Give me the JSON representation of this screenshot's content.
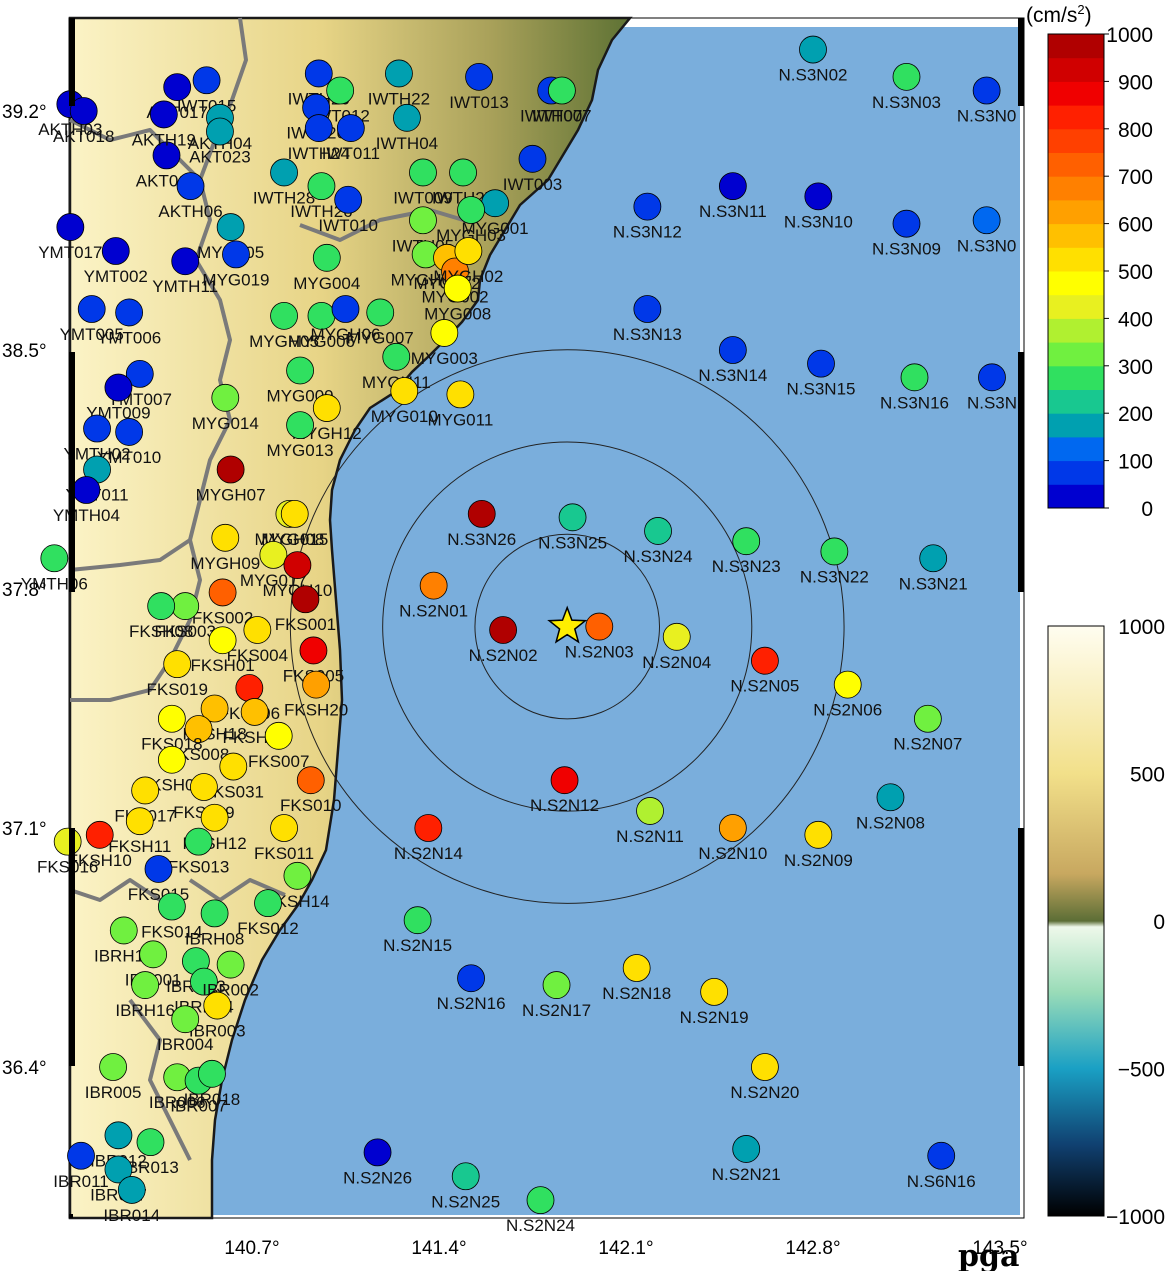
{
  "title_corner": "pga",
  "unit": "(cm/s",
  "unit_sup": "2",
  "unit_close": ")",
  "lon_ticks": [
    "140.7°",
    "141.4°",
    "142.1°",
    "142.8°",
    "143.5°"
  ],
  "lat_ticks": [
    "39.2°",
    "38.5°",
    "37.8°",
    "37.1°",
    "36.4°"
  ],
  "pga_colorbar": {
    "labels": [
      "1000",
      "900",
      "800",
      "700",
      "600",
      "500",
      "400",
      "300",
      "200",
      "100",
      "0"
    ],
    "colors": [
      "#0000d0",
      "#0038e8",
      "#0068f0",
      "#00a0b0",
      "#18c890",
      "#30e060",
      "#70f040",
      "#b0f030",
      "#e8f020",
      "#ffff00",
      "#ffe000",
      "#ffc000",
      "#ffa000",
      "#ff8000",
      "#ff6000",
      "#ff4000",
      "#ff2000",
      "#f00000",
      "#d00000",
      "#b00000"
    ]
  },
  "topo_colorbar": {
    "labels": [
      "1000",
      "500",
      "0",
      "−500",
      "−1000"
    ]
  },
  "colors": {
    "ocean": "#7aaedc",
    "land_low": "#6a7a3a",
    "land_high": "#f5ecb0",
    "star": "#ffee00",
    "epicenter_ring": "#222222"
  },
  "epicenter": {
    "lon": 141.88,
    "lat": 37.69
  },
  "rings_km": [
    30,
    60,
    90
  ],
  "stations": [
    {
      "name": "N.S3N02",
      "lon": 142.8,
      "lat": 39.38,
      "pga": 150
    },
    {
      "name": "N.S3N03",
      "lon": 143.15,
      "lat": 39.3,
      "pga": 290
    },
    {
      "name": "N.S3N0",
      "lon": 143.45,
      "lat": 39.26,
      "pga": 60
    },
    {
      "name": "N.S3N11",
      "lon": 142.5,
      "lat": 38.98,
      "pga": 40
    },
    {
      "name": "N.S3N10",
      "lon": 142.82,
      "lat": 38.95,
      "pga": 30
    },
    {
      "name": "N.S3N12",
      "lon": 142.18,
      "lat": 38.92,
      "pga": 60
    },
    {
      "name": "N.S3N09",
      "lon": 143.15,
      "lat": 38.87,
      "pga": 60
    },
    {
      "name": "N.S3N0",
      "lon": 143.45,
      "lat": 38.88,
      "pga": 140
    },
    {
      "name": "N.S3N13",
      "lon": 142.18,
      "lat": 38.62,
      "pga": 60
    },
    {
      "name": "N.S3N14",
      "lon": 142.5,
      "lat": 38.5,
      "pga": 50
    },
    {
      "name": "N.S3N15",
      "lon": 142.83,
      "lat": 38.46,
      "pga": 60
    },
    {
      "name": "N.S3N16",
      "lon": 143.18,
      "lat": 38.42,
      "pga": 260
    },
    {
      "name": "N.S3N",
      "lon": 143.47,
      "lat": 38.42,
      "pga": 60
    },
    {
      "name": "MYG011",
      "lon": 141.48,
      "lat": 38.37,
      "pga": 500
    },
    {
      "name": "N.S3N26",
      "lon": 141.56,
      "lat": 38.02,
      "pga": 950
    },
    {
      "name": "N.S3N25",
      "lon": 141.9,
      "lat": 38.01,
      "pga": 230
    },
    {
      "name": "N.S3N24",
      "lon": 142.22,
      "lat": 37.97,
      "pga": 230
    },
    {
      "name": "N.S3N23",
      "lon": 142.55,
      "lat": 37.94,
      "pga": 260
    },
    {
      "name": "N.S3N22",
      "lon": 142.88,
      "lat": 37.91,
      "pga": 280
    },
    {
      "name": "N.S3N21",
      "lon": 143.25,
      "lat": 37.89,
      "pga": 150
    },
    {
      "name": "N.S2N01",
      "lon": 141.38,
      "lat": 37.81,
      "pga": 680
    },
    {
      "name": "N.S2N02",
      "lon": 141.64,
      "lat": 37.68,
      "pga": 990
    },
    {
      "name": "N.S2N03",
      "lon": 142.0,
      "lat": 37.69,
      "pga": 720
    },
    {
      "name": "N.S2N04",
      "lon": 142.29,
      "lat": 37.66,
      "pga": 420
    },
    {
      "name": "N.S2N05",
      "lon": 142.62,
      "lat": 37.59,
      "pga": 840
    },
    {
      "name": "N.S2N06",
      "lon": 142.93,
      "lat": 37.52,
      "pga": 480
    },
    {
      "name": "N.S2N07",
      "lon": 143.23,
      "lat": 37.42,
      "pga": 300
    },
    {
      "name": "N.S2N12",
      "lon": 141.87,
      "lat": 37.24,
      "pga": 870
    },
    {
      "name": "N.S2N11",
      "lon": 142.19,
      "lat": 37.15,
      "pga": 390
    },
    {
      "name": "N.S2N08",
      "lon": 143.09,
      "lat": 37.19,
      "pga": 150
    },
    {
      "name": "N.S2N14",
      "lon": 141.36,
      "lat": 37.1,
      "pga": 820
    },
    {
      "name": "N.S2N10",
      "lon": 142.5,
      "lat": 37.1,
      "pga": 600
    },
    {
      "name": "N.S2N09",
      "lon": 142.82,
      "lat": 37.08,
      "pga": 500
    },
    {
      "name": "N.S2N15",
      "lon": 141.32,
      "lat": 36.83,
      "pga": 250
    },
    {
      "name": "N.S2N16",
      "lon": 141.52,
      "lat": 36.66,
      "pga": 50
    },
    {
      "name": "N.S2N17",
      "lon": 141.84,
      "lat": 36.64,
      "pga": 330
    },
    {
      "name": "N.S2N18",
      "lon": 142.14,
      "lat": 36.69,
      "pga": 530
    },
    {
      "name": "N.S2N19",
      "lon": 142.43,
      "lat": 36.62,
      "pga": 520
    },
    {
      "name": "N.S2N20",
      "lon": 142.62,
      "lat": 36.4,
      "pga": 500
    },
    {
      "name": "N.S2N21",
      "lon": 142.55,
      "lat": 36.16,
      "pga": 150
    },
    {
      "name": "N.S6N16",
      "lon": 143.28,
      "lat": 36.14,
      "pga": 60
    },
    {
      "name": "N.S2N26",
      "lon": 141.17,
      "lat": 36.15,
      "pga": 40
    },
    {
      "name": "N.S2N25",
      "lon": 141.5,
      "lat": 36.08,
      "pga": 200
    },
    {
      "name": "N.S2N24",
      "lon": 141.78,
      "lat": 36.01,
      "pga": 280
    },
    {
      "name": "IWT013",
      "lon": 141.55,
      "lat": 39.3,
      "pga": 60
    },
    {
      "name": "IWTH22",
      "lon": 141.25,
      "lat": 39.31,
      "pga": 150
    },
    {
      "name": "IWTH20",
      "lon": 140.95,
      "lat": 39.31,
      "pga": 60
    },
    {
      "name": "IWT012",
      "lon": 141.03,
      "lat": 39.26,
      "pga": 280
    },
    {
      "name": "IWT026",
      "lon": 140.94,
      "lat": 39.21,
      "pga": 60
    },
    {
      "name": "IWT015",
      "lon": 140.53,
      "lat": 39.29,
      "pga": 50
    },
    {
      "name": "AKT017",
      "lon": 140.42,
      "lat": 39.27,
      "pga": 40
    },
    {
      "name": "IWTH07",
      "lon": 141.82,
      "lat": 39.26,
      "pga": 60
    },
    {
      "name": "IWT007",
      "lon": 141.86,
      "lat": 39.26,
      "pga": 280
    },
    {
      "name": "AKTH04",
      "lon": 140.58,
      "lat": 39.18,
      "pga": 150
    },
    {
      "name": "IWTH24",
      "lon": 140.95,
      "lat": 39.15,
      "pga": 50
    },
    {
      "name": "IWTH04",
      "lon": 141.28,
      "lat": 39.18,
      "pga": 150
    },
    {
      "name": "IWT011",
      "lon": 141.07,
      "lat": 39.15,
      "pga": 60
    },
    {
      "name": "IWT003",
      "lon": 141.75,
      "lat": 39.06,
      "pga": 60
    },
    {
      "name": "IWTH27",
      "lon": 141.49,
      "lat": 39.02,
      "pga": 290
    },
    {
      "name": "IWT009",
      "lon": 141.34,
      "lat": 39.02,
      "pga": 290
    },
    {
      "name": "IWTH28",
      "lon": 140.82,
      "lat": 39.02,
      "pga": 150
    },
    {
      "name": "IWTH26",
      "lon": 140.96,
      "lat": 38.98,
      "pga": 260
    },
    {
      "name": "IWT010",
      "lon": 141.06,
      "lat": 38.94,
      "pga": 60
    },
    {
      "name": "MYG001",
      "lon": 141.61,
      "lat": 38.93,
      "pga": 150
    },
    {
      "name": "IWTH05",
      "lon": 141.34,
      "lat": 38.88,
      "pga": 300
    },
    {
      "name": "MYGH03",
      "lon": 141.52,
      "lat": 38.91,
      "pga": 260
    },
    {
      "name": "AKT019",
      "lon": 140.38,
      "lat": 39.07,
      "pga": 40
    },
    {
      "name": "AKTH06",
      "lon": 140.47,
      "lat": 38.98,
      "pga": 60
    },
    {
      "name": "MYG005",
      "lon": 140.62,
      "lat": 38.86,
      "pga": 150
    },
    {
      "name": "MYG019",
      "lon": 140.64,
      "lat": 38.78,
      "pga": 60
    },
    {
      "name": "MYG004",
      "lon": 140.98,
      "lat": 38.77,
      "pga": 280
    },
    {
      "name": "MYGH04",
      "lon": 141.35,
      "lat": 38.78,
      "pga": 300
    },
    {
      "name": "MYG012",
      "lon": 141.43,
      "lat": 38.77,
      "pga": 560
    },
    {
      "name": "MYG002",
      "lon": 141.46,
      "lat": 38.73,
      "pga": 680
    },
    {
      "name": "MYGH02",
      "lon": 141.51,
      "lat": 38.79,
      "pga": 500
    },
    {
      "name": "MYG008",
      "lon": 141.47,
      "lat": 38.68,
      "pga": 450
    },
    {
      "name": "MYGH05",
      "lon": 140.82,
      "lat": 38.6,
      "pga": 280
    },
    {
      "name": "MYG006",
      "lon": 140.96,
      "lat": 38.6,
      "pga": 260
    },
    {
      "name": "MYGH06",
      "lon": 141.05,
      "lat": 38.62,
      "pga": 60
    },
    {
      "name": "MYG007",
      "lon": 141.18,
      "lat": 38.61,
      "pga": 260
    },
    {
      "name": "MYG003",
      "lon": 141.42,
      "lat": 38.55,
      "pga": 450
    },
    {
      "name": "MYGH11",
      "lon": 141.24,
      "lat": 38.48,
      "pga": 280
    },
    {
      "name": "MYG010",
      "lon": 141.27,
      "lat": 38.38,
      "pga": 500
    },
    {
      "name": "MYG009",
      "lon": 140.88,
      "lat": 38.44,
      "pga": 280
    },
    {
      "name": "MYG014",
      "lon": 140.6,
      "lat": 38.36,
      "pga": 300
    },
    {
      "name": "MYGH12",
      "lon": 140.98,
      "lat": 38.33,
      "pga": 500
    },
    {
      "name": "MYG013",
      "lon": 140.88,
      "lat": 38.28,
      "pga": 280
    },
    {
      "name": "MYGH07",
      "lon": 140.62,
      "lat": 38.15,
      "pga": 950
    },
    {
      "name": "MYGH08",
      "lon": 140.84,
      "lat": 38.02,
      "pga": 420
    },
    {
      "name": "MYG015",
      "lon": 140.86,
      "lat": 38.02,
      "pga": 500
    },
    {
      "name": "MYGH09",
      "lon": 140.6,
      "lat": 37.95,
      "pga": 520
    },
    {
      "name": "MYG017",
      "lon": 140.78,
      "lat": 37.9,
      "pga": 420
    },
    {
      "name": "MYGH10",
      "lon": 140.87,
      "lat": 37.87,
      "pga": 930
    },
    {
      "name": "FKS002",
      "lon": 140.59,
      "lat": 37.79,
      "pga": 720
    },
    {
      "name": "FKS001",
      "lon": 140.9,
      "lat": 37.77,
      "pga": 950
    },
    {
      "name": "FKS003",
      "lon": 140.45,
      "lat": 37.75,
      "pga": 300
    },
    {
      "name": "FKSH08",
      "lon": 140.36,
      "lat": 37.75,
      "pga": 260
    },
    {
      "name": "FKS004",
      "lon": 140.72,
      "lat": 37.68,
      "pga": 500
    },
    {
      "name": "FKSH01",
      "lon": 140.59,
      "lat": 37.65,
      "pga": 450
    },
    {
      "name": "FKS005",
      "lon": 140.93,
      "lat": 37.62,
      "pga": 880
    },
    {
      "name": "FKS019",
      "lon": 140.42,
      "lat": 37.58,
      "pga": 500
    },
    {
      "name": "FKS006",
      "lon": 140.69,
      "lat": 37.51,
      "pga": 800
    },
    {
      "name": "FKSH20",
      "lon": 140.94,
      "lat": 37.52,
      "pga": 600
    },
    {
      "name": "FKSH19",
      "lon": 140.71,
      "lat": 37.44,
      "pga": 560
    },
    {
      "name": "FKSH18",
      "lon": 140.56,
      "lat": 37.45,
      "pga": 580
    },
    {
      "name": "FKS008",
      "lon": 140.5,
      "lat": 37.39,
      "pga": 560
    },
    {
      "name": "FKS018",
      "lon": 140.4,
      "lat": 37.42,
      "pga": 480
    },
    {
      "name": "FKS007",
      "lon": 140.8,
      "lat": 37.37,
      "pga": 450
    },
    {
      "name": "FKSH09",
      "lon": 140.4,
      "lat": 37.3,
      "pga": 480
    },
    {
      "name": "FKS031",
      "lon": 140.63,
      "lat": 37.28,
      "pga": 500
    },
    {
      "name": "FKS010",
      "lon": 140.92,
      "lat": 37.24,
      "pga": 720
    },
    {
      "name": "FKS017",
      "lon": 140.3,
      "lat": 37.21,
      "pga": 500
    },
    {
      "name": "FKS009",
      "lon": 140.52,
      "lat": 37.22,
      "pga": 530
    },
    {
      "name": "FKSH12",
      "lon": 140.56,
      "lat": 37.13,
      "pga": 500
    },
    {
      "name": "FKSH11",
      "lon": 140.28,
      "lat": 37.12,
      "pga": 500
    },
    {
      "name": "FKS013",
      "lon": 140.5,
      "lat": 37.06,
      "pga": 250
    },
    {
      "name": "FKS011",
      "lon": 140.82,
      "lat": 37.1,
      "pga": 500
    },
    {
      "name": "FKSH10",
      "lon": 140.13,
      "lat": 37.08,
      "pga": 820
    },
    {
      "name": "FKS016",
      "lon": 140.01,
      "lat": 37.06,
      "pga": 400
    },
    {
      "name": "FKS015",
      "lon": 140.35,
      "lat": 36.98,
      "pga": 60
    },
    {
      "name": "FKSH14",
      "lon": 140.87,
      "lat": 36.96,
      "pga": 300
    },
    {
      "name": "FKS012",
      "lon": 140.76,
      "lat": 36.88,
      "pga": 250
    },
    {
      "name": "FKS014",
      "lon": 140.4,
      "lat": 36.87,
      "pga": 280
    },
    {
      "name": "IBRH08",
      "lon": 140.56,
      "lat": 36.85,
      "pga": 280
    },
    {
      "name": "IBRH12",
      "lon": 140.22,
      "lat": 36.8,
      "pga": 300
    },
    {
      "name": "IBRH13",
      "lon": 140.49,
      "lat": 36.71,
      "pga": 280
    },
    {
      "name": "IBRH14",
      "lon": 140.52,
      "lat": 36.65,
      "pga": 250
    },
    {
      "name": "IBR002",
      "lon": 140.62,
      "lat": 36.7,
      "pga": 300
    },
    {
      "name": "IBR001",
      "lon": 140.33,
      "lat": 36.73,
      "pga": 300
    },
    {
      "name": "IBRH16",
      "lon": 140.3,
      "lat": 36.64,
      "pga": 300
    },
    {
      "name": "IBR003",
      "lon": 140.57,
      "lat": 36.58,
      "pga": 500
    },
    {
      "name": "IBR004",
      "lon": 140.45,
      "lat": 36.54,
      "pga": 300
    },
    {
      "name": "IBR005",
      "lon": 140.18,
      "lat": 36.4,
      "pga": 300
    },
    {
      "name": "IBR006",
      "lon": 140.42,
      "lat": 36.37,
      "pga": 300
    },
    {
      "name": "IBR007",
      "lon": 140.5,
      "lat": 36.36,
      "pga": 280
    },
    {
      "name": "IBR018",
      "lon": 140.55,
      "lat": 36.38,
      "pga": 280
    },
    {
      "name": "IBR013",
      "lon": 140.32,
      "lat": 36.18,
      "pga": 280
    },
    {
      "name": "IBR012",
      "lon": 140.2,
      "lat": 36.2,
      "pga": 150
    },
    {
      "name": "IBR017",
      "lon": 140.2,
      "lat": 36.1,
      "pga": 150
    },
    {
      "name": "IBR014",
      "lon": 140.25,
      "lat": 36.04,
      "pga": 150
    },
    {
      "name": "IBR011",
      "lon": 140.06,
      "lat": 36.14,
      "pga": 60
    },
    {
      "name": "YMT017",
      "lon": 140.02,
      "lat": 38.86,
      "pga": 40
    },
    {
      "name": "YMT002",
      "lon": 140.19,
      "lat": 38.79,
      "pga": 40
    },
    {
      "name": "YMTH11",
      "lon": 140.45,
      "lat": 38.76,
      "pga": 40
    },
    {
      "name": "YMT006",
      "lon": 140.24,
      "lat": 38.61,
      "pga": 60
    },
    {
      "name": "YMT005",
      "lon": 140.1,
      "lat": 38.62,
      "pga": 60
    },
    {
      "name": "YMT007",
      "lon": 140.28,
      "lat": 38.43,
      "pga": 60
    },
    {
      "name": "YMT009",
      "lon": 140.2,
      "lat": 38.39,
      "pga": 40
    },
    {
      "name": "YMT010",
      "lon": 140.24,
      "lat": 38.26,
      "pga": 60
    },
    {
      "name": "YMTH02",
      "lon": 140.12,
      "lat": 38.27,
      "pga": 60
    },
    {
      "name": "YMT011",
      "lon": 140.12,
      "lat": 38.15,
      "pga": 150
    },
    {
      "name": "YMTH04",
      "lon": 140.08,
      "lat": 38.09,
      "pga": 40
    },
    {
      "name": "YMTH06",
      "lon": 139.96,
      "lat": 37.89,
      "pga": 280
    },
    {
      "name": "AKTH03",
      "lon": 140.02,
      "lat": 39.22,
      "pga": 40
    },
    {
      "name": "AKT018",
      "lon": 140.07,
      "lat": 39.2,
      "pga": 40
    },
    {
      "name": "AKTH19",
      "lon": 140.37,
      "lat": 39.19,
      "pga": 40
    },
    {
      "name": "AKT023",
      "lon": 140.58,
      "lat": 39.14,
      "pga": 150
    }
  ]
}
